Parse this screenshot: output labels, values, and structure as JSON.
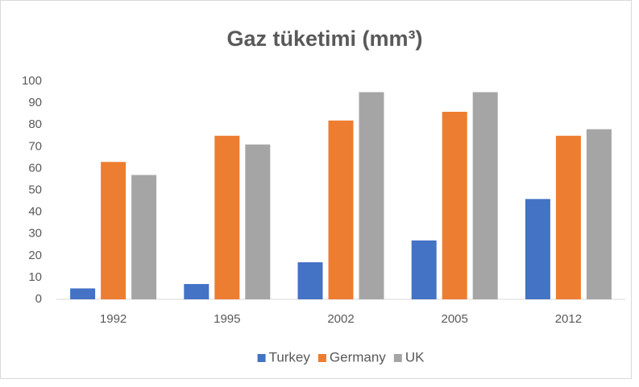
{
  "chart_data": {
    "type": "bar",
    "title": "Gaz tüketimi (mm³)",
    "categories": [
      "1992",
      "1995",
      "2002",
      "2005",
      "2012"
    ],
    "series": [
      {
        "name": "Turkey",
        "color": "#4472c4",
        "values": [
          5,
          7,
          17,
          27,
          46
        ]
      },
      {
        "name": "Germany",
        "color": "#ed7d31",
        "values": [
          63,
          75,
          82,
          86,
          75
        ]
      },
      {
        "name": "UK",
        "color": "#a5a5a5",
        "values": [
          57,
          71,
          95,
          95,
          78
        ]
      }
    ],
    "ylim": [
      0,
      100
    ],
    "yticks": [
      0,
      10,
      20,
      30,
      40,
      50,
      60,
      70,
      80,
      90,
      100
    ],
    "grid": false,
    "legend": "bottom"
  }
}
